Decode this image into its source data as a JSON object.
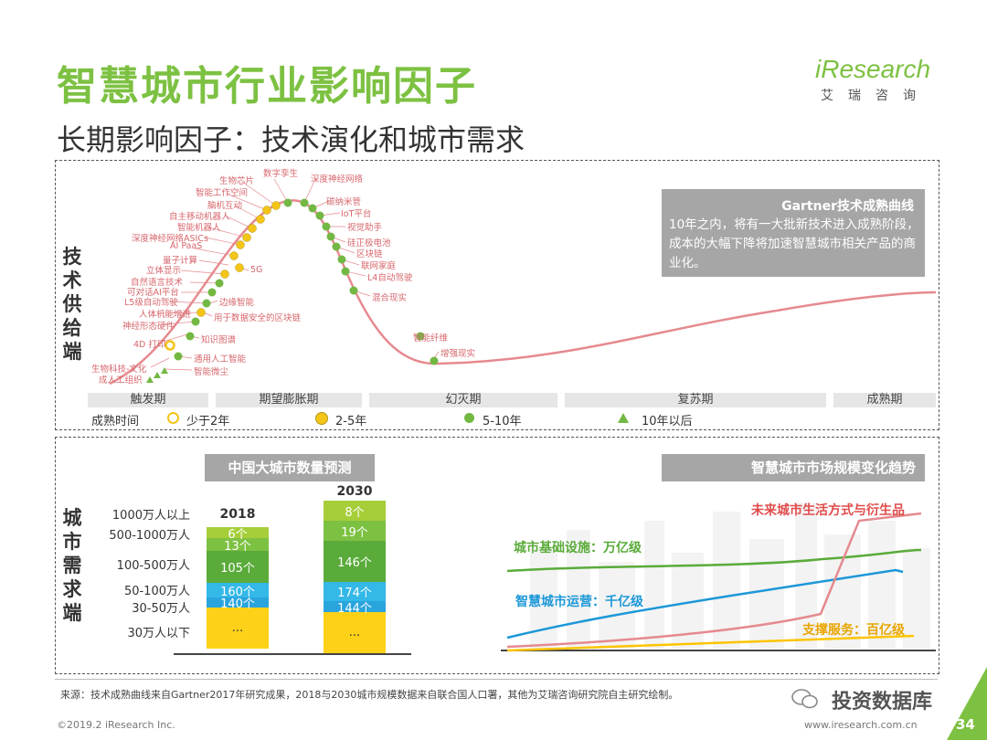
{
  "header": {
    "title": "智慧城市行业影响因子",
    "subtitle": "长期影响因子：技术演化和城市需求",
    "logo_main": "iResearch",
    "logo_sub": "艾瑞咨询"
  },
  "supply": {
    "side_label": "技术供给端",
    "gartner_title": "Gartner技术成熟曲线",
    "gartner_text": "10年之内，将有一大批新技术进入成熟阶段，成本的大幅下降将加速智慧城市相关产品的商业化。",
    "phases": [
      "触发期",
      "期望膨胀期",
      "幻灭期",
      "复苏期",
      "成熟期"
    ],
    "legend": {
      "title": "成熟时间",
      "items": [
        "少于2年",
        "2-5年",
        "5-10年",
        "10年以后"
      ]
    },
    "techs": [
      "生物芯片",
      "智能工作空间",
      "脑机互动",
      "自主移动机器人",
      "智能机器人",
      "深度神经网络ASICs",
      "AI PaaS",
      "量子计算",
      "立体显示",
      "自然语言技术",
      "可对话AI平台",
      "L5级自动驾驶",
      "人体机能增进",
      "神经形态硬件",
      "4D 打印",
      "生物科技-文化",
      "成人工组织",
      "数字孪生",
      "深度神经网络",
      "碳纳米管",
      "IoT平台",
      "视觉助手",
      "硅正极电池",
      "区块链",
      "联网家庭",
      "L4自动驾驶",
      "混合现实",
      "5G",
      "边缘智能",
      "用于数据安全的区块链",
      "知识图谱",
      "通用人工智能",
      "智能微尘",
      "智能纤维",
      "增强现实"
    ]
  },
  "demand": {
    "side_label": "城市需求端",
    "forecast_title": "中国大城市数量预测",
    "trend_title": "智慧城市市场规模变化趋势",
    "categories": [
      "1000万人以上",
      "500-1000万人",
      "100-500万人",
      "50-100万人",
      "30-50万人",
      "30万人以下"
    ],
    "trend_labels": {
      "future": "未来城市生活方式与衍生品",
      "infra": "城市基础设施：万亿级",
      "ops": "智慧城市运营：千亿级",
      "support": "支撑服务：百亿级"
    }
  },
  "chart_data": {
    "type": "bar",
    "title": "中国大城市数量预测",
    "categories": [
      "2018",
      "2030"
    ],
    "series": [
      {
        "name": "30万人以下",
        "labels": [
          "...",
          "..."
        ]
      },
      {
        "name": "30-50万人",
        "values": [
          140,
          144
        ]
      },
      {
        "name": "50-100万人",
        "values": [
          160,
          174
        ]
      },
      {
        "name": "100-500万人",
        "values": [
          105,
          146
        ]
      },
      {
        "name": "500-1000万人",
        "values": [
          13,
          19
        ]
      },
      {
        "name": "1000万人以上",
        "values": [
          6,
          8
        ]
      }
    ],
    "value_labels": {
      "2018": {
        "30-50万人": "140个",
        "50-100万人": "160个",
        "100-500万人": "105个",
        "500-1000万人": "13个",
        "1000万人以上": "6个"
      },
      "2030": {
        "30-50万人": "144个",
        "50-100万人": "174个",
        "100-500万人": "146个",
        "500-1000万人": "19个",
        "1000万人以上": "8个"
      }
    },
    "colors": {
      "30万人以下": "#fdd117",
      "30-50万人": "#29a4dd",
      "50-100万人": "#33b8e7",
      "100-500万人": "#5aab3a",
      "500-1000万人": "#7dc142",
      "1000万人以上": "#a6ce39"
    }
  },
  "footer": {
    "source": "来源：技术成熟曲线来自Gartner2017年研究成果，2018与2030城市规模数据来自联合国人口署，其他为艾瑞咨询研究院自主研究绘制。",
    "copyright": "©2019.2 iResearch Inc.",
    "url": "www.iresearch.com.cn",
    "watermark": "投资数据库",
    "page": "34"
  }
}
